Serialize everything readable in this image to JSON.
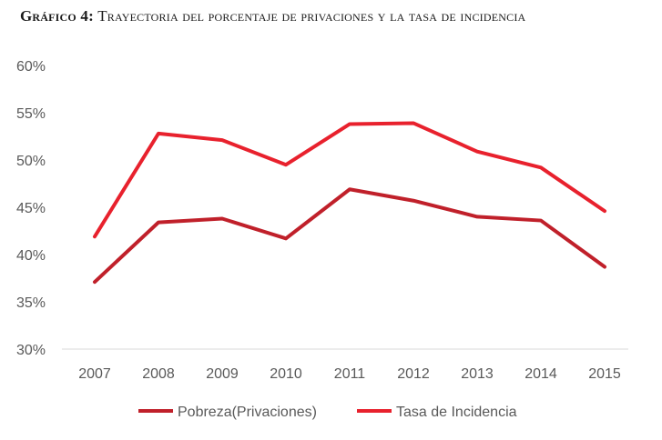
{
  "title": {
    "lead": "Gráfico 4:",
    "rest": "Trayectoria del porcentaje de privaciones y la tasa de incidencia"
  },
  "chart_data": {
    "type": "line",
    "title": "Gráfico 4: Trayectoria del porcentaje de privaciones y la tasa de incidencia",
    "categories": [
      "2007",
      "2008",
      "2009",
      "2010",
      "2011",
      "2012",
      "2013",
      "2014",
      "2015"
    ],
    "ylim": [
      30,
      60
    ],
    "yticks": [
      30,
      35,
      40,
      45,
      50,
      55,
      60
    ],
    "ytick_labels": [
      "30%",
      "35%",
      "40%",
      "45%",
      "50%",
      "55%",
      "60%"
    ],
    "grid": "horizontal baseline only",
    "legend": "bottom",
    "series": [
      {
        "name": "Pobreza(Privaciones)",
        "color": "#c0202a",
        "values": [
          37.1,
          43.4,
          43.8,
          41.7,
          46.9,
          45.7,
          44.0,
          43.6,
          38.7
        ]
      },
      {
        "name": "Tasa de Incidencia",
        "color": "#e8212d",
        "values": [
          41.9,
          52.8,
          52.1,
          49.5,
          53.8,
          53.9,
          50.9,
          49.2,
          44.6
        ]
      }
    ]
  }
}
